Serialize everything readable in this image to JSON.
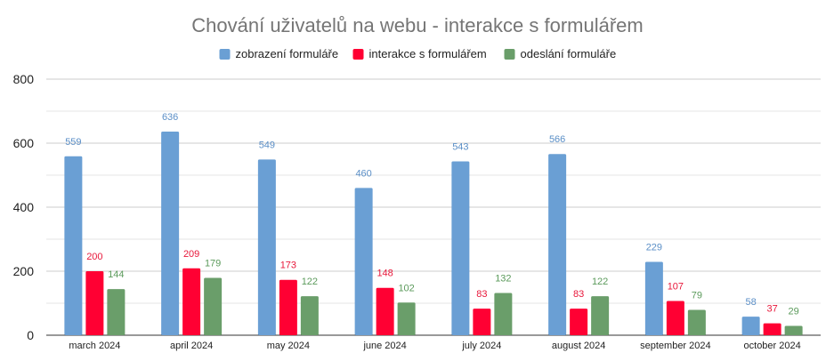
{
  "chart_data": {
    "type": "bar",
    "title": "Chování uživatelů na webu - interakce s formulářem",
    "categories": [
      "march 2024",
      "april 2024",
      "may 2024",
      "june 2024",
      "july 2024",
      "august 2024",
      "september 2024",
      "october 2024"
    ],
    "series": [
      {
        "name": "zobrazení formuláře",
        "color": "#6a9fd4",
        "label_color": "#5b8fc7",
        "values": [
          559,
          636,
          549,
          460,
          543,
          566,
          229,
          58
        ]
      },
      {
        "name": "interakce s formulářem",
        "color": "#ff0033",
        "label_color": "#e8173a",
        "values": [
          200,
          209,
          173,
          148,
          83,
          83,
          107,
          37
        ]
      },
      {
        "name": "odeslání formuláře",
        "color": "#6a9e6a",
        "label_color": "#5b9a5b",
        "values": [
          144,
          179,
          122,
          102,
          132,
          122,
          79,
          29
        ]
      }
    ],
    "yticks": [
      0,
      200,
      400,
      600,
      800
    ],
    "ylim": [
      0,
      800
    ],
    "minor_gridline_step": 100,
    "legend_position": "top-center",
    "grid": true
  }
}
